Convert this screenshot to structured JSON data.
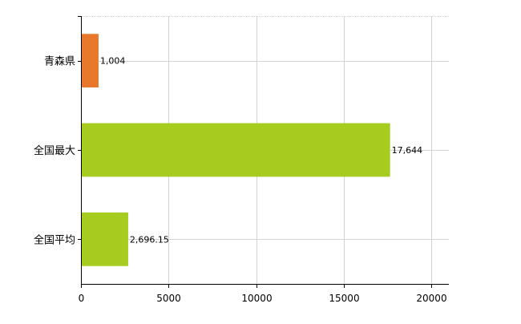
{
  "chart_data": {
    "type": "bar",
    "orientation": "horizontal",
    "title": "",
    "xlabel": "",
    "ylabel": "",
    "categories": [
      "青森県",
      "全国最大",
      "全国平均"
    ],
    "values": [
      1004,
      17644,
      2696.15
    ],
    "value_labels": [
      "1,004",
      "17,644",
      "2,696.15"
    ],
    "bar_colors": [
      "#E8782A",
      "#A5CC1F",
      "#A5CC1F"
    ],
    "xlim": [
      0,
      21000
    ],
    "xticks": [
      0,
      5000,
      10000,
      15000,
      20000
    ],
    "xtick_labels": [
      "0",
      "5000",
      "10000",
      "15000",
      "20000"
    ],
    "grid": true,
    "legend": "none"
  },
  "colors": {
    "grid": "#D3D3D3",
    "axis": "#000000",
    "text": "#000000"
  }
}
